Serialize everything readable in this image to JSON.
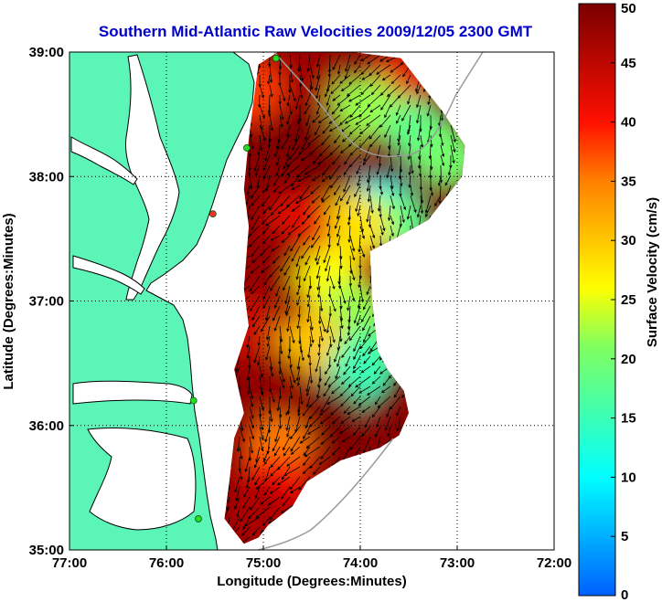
{
  "title": "Southern Mid-Atlantic Raw Velocities 2009/12/05 2300 GMT",
  "colors": {
    "land": "#5cf5b8",
    "ocean": "#ffffff",
    "coast": "#000000",
    "bathymetry": "#9a9a9a",
    "title": "#0000cc"
  },
  "chart_data": {
    "type": "heatmap",
    "title": "Southern Mid-Atlantic Raw Velocities 2009/12/05 2300 GMT",
    "xlabel": "Longitude (Degrees:Minutes)",
    "ylabel": "Latitude (Degrees:Minutes)",
    "xlim": [
      -77,
      -72
    ],
    "ylim": [
      35,
      39
    ],
    "x_ticks": [
      {
        "value": -77,
        "label": "77:00"
      },
      {
        "value": -76,
        "label": "76:00"
      },
      {
        "value": -75,
        "label": "75:00"
      },
      {
        "value": -74,
        "label": "74:00"
      },
      {
        "value": -73,
        "label": "73:00"
      },
      {
        "value": -72,
        "label": "72:00"
      }
    ],
    "y_ticks": [
      {
        "value": 35,
        "label": "35:00"
      },
      {
        "value": 36,
        "label": "36:00"
      },
      {
        "value": 37,
        "label": "37:00"
      },
      {
        "value": 38,
        "label": "38:00"
      },
      {
        "value": 39,
        "label": "39:00"
      }
    ],
    "grid": true,
    "colorbar": {
      "label": "Surface Velocity (cm/s)",
      "min": 0,
      "max": 50,
      "ticks": [
        {
          "value": 0,
          "label": "0"
        },
        {
          "value": 5,
          "label": "5"
        },
        {
          "value": 10,
          "label": "10"
        },
        {
          "value": 15,
          "label": "15"
        },
        {
          "value": 20,
          "label": "20"
        },
        {
          "value": 25,
          "label": "25"
        },
        {
          "value": 30,
          "label": "30"
        },
        {
          "value": 35,
          "label": "35"
        },
        {
          "value": 40,
          "label": "40"
        },
        {
          "value": 45,
          "label": "45"
        },
        {
          "value": 50,
          "label": "50"
        }
      ]
    },
    "coverage_polygon": [
      [
        -74.6,
        39.0
      ],
      [
        -74.08,
        39.0
      ],
      [
        -73.58,
        38.95
      ],
      [
        -73.35,
        38.72
      ],
      [
        -73.15,
        38.52
      ],
      [
        -72.92,
        38.25
      ],
      [
        -72.95,
        38.0
      ],
      [
        -73.3,
        37.65
      ],
      [
        -73.65,
        37.5
      ],
      [
        -73.9,
        37.4
      ],
      [
        -73.88,
        37.02
      ],
      [
        -73.82,
        36.6
      ],
      [
        -73.72,
        36.45
      ],
      [
        -73.55,
        36.28
      ],
      [
        -73.5,
        36.1
      ],
      [
        -73.6,
        35.92
      ],
      [
        -73.8,
        35.82
      ],
      [
        -74.2,
        35.72
      ],
      [
        -74.55,
        35.55
      ],
      [
        -74.7,
        35.35
      ],
      [
        -74.95,
        35.2
      ],
      [
        -75.05,
        35.1
      ],
      [
        -75.2,
        35.05
      ],
      [
        -75.4,
        35.25
      ],
      [
        -75.35,
        35.55
      ],
      [
        -75.3,
        35.9
      ],
      [
        -75.2,
        36.1
      ],
      [
        -75.3,
        36.45
      ],
      [
        -75.15,
        36.8
      ],
      [
        -75.2,
        37.1
      ],
      [
        -75.15,
        37.6
      ],
      [
        -75.2,
        37.9
      ],
      [
        -75.15,
        38.3
      ],
      [
        -75.1,
        38.6
      ],
      [
        -75.05,
        38.9
      ],
      [
        -74.85,
        39.0
      ]
    ],
    "velocity_field": [
      {
        "lon": -74.8,
        "lat": 38.45,
        "speed": 50
      },
      {
        "lon": -74.3,
        "lat": 38.05,
        "speed": 50
      },
      {
        "lon": -74.5,
        "lat": 38.8,
        "speed": 47
      },
      {
        "lon": -73.6,
        "lat": 38.75,
        "speed": 42
      },
      {
        "lon": -73.95,
        "lat": 38.55,
        "speed": 22
      },
      {
        "lon": -73.4,
        "lat": 38.35,
        "speed": 18
      },
      {
        "lon": -73.1,
        "lat": 38.15,
        "speed": 20
      },
      {
        "lon": -73.75,
        "lat": 37.75,
        "speed": 10
      },
      {
        "lon": -73.6,
        "lat": 37.62,
        "speed": 18
      },
      {
        "lon": -74.05,
        "lat": 37.6,
        "speed": 28
      },
      {
        "lon": -74.65,
        "lat": 37.6,
        "speed": 42
      },
      {
        "lon": -74.9,
        "lat": 37.3,
        "speed": 48
      },
      {
        "lon": -74.3,
        "lat": 37.15,
        "speed": 26
      },
      {
        "lon": -74.05,
        "lat": 36.9,
        "speed": 22
      },
      {
        "lon": -74.5,
        "lat": 36.65,
        "speed": 30
      },
      {
        "lon": -73.9,
        "lat": 36.55,
        "speed": 18
      },
      {
        "lon": -74.0,
        "lat": 36.4,
        "speed": 15
      },
      {
        "lon": -74.85,
        "lat": 36.3,
        "speed": 48
      },
      {
        "lon": -74.3,
        "lat": 36.05,
        "speed": 50
      },
      {
        "lon": -74.85,
        "lat": 35.8,
        "speed": 35
      },
      {
        "lon": -74.9,
        "lat": 35.5,
        "speed": 40
      },
      {
        "lon": -75.05,
        "lat": 35.3,
        "speed": 46
      },
      {
        "lon": -75.2,
        "lat": 36.8,
        "speed": 44
      },
      {
        "lon": -75.15,
        "lat": 38.7,
        "speed": 38
      }
    ],
    "radar_sites": [
      {
        "lon": -74.87,
        "lat": 38.95,
        "status": "active"
      },
      {
        "lon": -75.17,
        "lat": 38.23,
        "status": "active"
      },
      {
        "lon": -75.52,
        "lat": 37.7,
        "status": "inactive"
      },
      {
        "lon": -75.72,
        "lat": 36.2,
        "status": "active"
      },
      {
        "lon": -75.67,
        "lat": 35.25,
        "status": "active"
      }
    ]
  }
}
